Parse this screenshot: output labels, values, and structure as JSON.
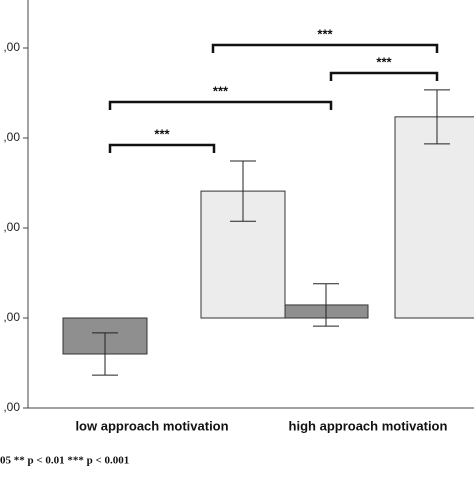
{
  "chart_data": {
    "type": "bar",
    "categories": [
      "low approach motivation",
      "high approach motivation"
    ],
    "series": [
      {
        "color": "#8f8f8f",
        "values": [
          -0.8,
          0.29
        ],
        "errors": [
          0.47,
          0.47
        ]
      },
      {
        "color": "#ececec",
        "values": [
          2.82,
          4.47
        ],
        "errors": [
          0.67,
          0.6
        ]
      }
    ],
    "ylim": [
      -2,
      6
    ],
    "yticks": [
      {
        "value": -2,
        "label": ",00"
      },
      {
        "value": 0,
        "label": ",00"
      },
      {
        "value": 2,
        "label": ",00"
      },
      {
        "value": 4,
        "label": ",00"
      },
      {
        "value": 6,
        "label": ",00"
      }
    ],
    "annotations": [
      "***",
      "***",
      "***",
      "***"
    ],
    "footnote": "05 ** p < 0.01 *** p < 0.001"
  }
}
